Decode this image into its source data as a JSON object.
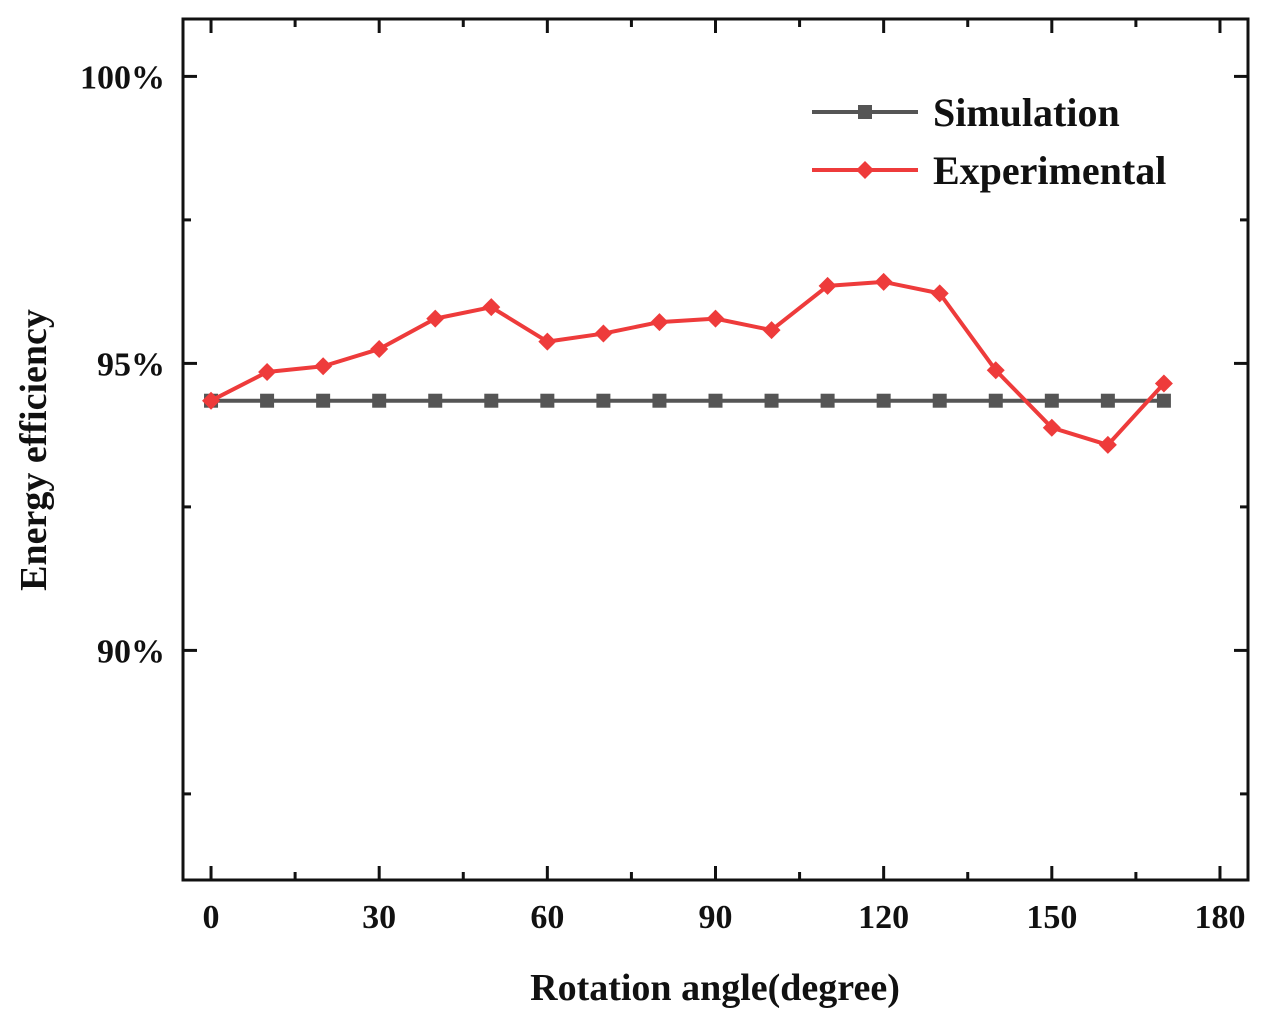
{
  "chart_data": {
    "type": "line",
    "title": "",
    "xlabel": "Rotation angle(degree)",
    "ylabel": "Energy efficiency",
    "xlim": [
      -5,
      185
    ],
    "ylim": [
      86.0,
      101.0
    ],
    "x_ticks": [
      0,
      30,
      60,
      90,
      120,
      150,
      180
    ],
    "x_tick_labels": [
      "0",
      "30",
      "60",
      "90",
      "120",
      "150",
      "180"
    ],
    "x_minor_ticks": [
      15,
      45,
      75,
      105,
      135,
      165
    ],
    "y_ticks": [
      90,
      95,
      100
    ],
    "y_tick_labels": [
      "90%",
      "95%",
      "100%"
    ],
    "y_minor_ticks": [
      87.5,
      92.5,
      97.5
    ],
    "grid": false,
    "legend_position": "top-right",
    "x": [
      0,
      10,
      20,
      30,
      40,
      50,
      60,
      70,
      80,
      90,
      100,
      110,
      120,
      130,
      140,
      150,
      160,
      170
    ],
    "series": [
      {
        "name": "Simulation",
        "color": "#555555",
        "marker": "square",
        "values": [
          94.35,
          94.35,
          94.35,
          94.35,
          94.35,
          94.35,
          94.35,
          94.35,
          94.35,
          94.35,
          94.35,
          94.35,
          94.35,
          94.35,
          94.35,
          94.35,
          94.35,
          94.35
        ]
      },
      {
        "name": "Experimental",
        "color": "#ee3b3b",
        "marker": "diamond",
        "values": [
          94.35,
          94.85,
          94.95,
          95.25,
          95.78,
          95.98,
          95.38,
          95.52,
          95.72,
          95.78,
          95.58,
          96.35,
          96.42,
          96.22,
          94.88,
          93.88,
          93.58,
          94.65
        ]
      }
    ]
  }
}
